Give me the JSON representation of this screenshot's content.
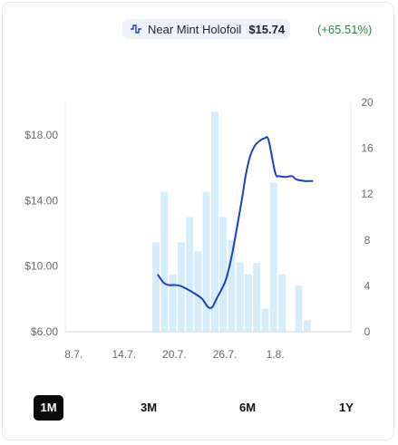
{
  "legend": {
    "icon": "line-series-icon",
    "series_name": "Near Mint Holofoil",
    "price": "$15.74",
    "change": "(+65.51%)",
    "line_color": "#1f3fbf",
    "bar_color": "#d5ecfb",
    "change_color": "#2e8b3e"
  },
  "ranges": [
    {
      "label": "1M",
      "active": true
    },
    {
      "label": "3M",
      "active": false
    },
    {
      "label": "6M",
      "active": false
    },
    {
      "label": "1Y",
      "active": false
    }
  ],
  "chart_data": {
    "type": "line",
    "x_ticks": [
      "8.7.",
      "14.7.",
      "20.7.",
      "26.7.",
      "1.8."
    ],
    "y_left_ticks": [
      "$6.00",
      "$10.00",
      "$14.00",
      "$18.00"
    ],
    "y_left_range": [
      6,
      20
    ],
    "y_right_ticks": [
      "0",
      "4",
      "8",
      "12",
      "16",
      "20"
    ],
    "y_right_range": [
      0,
      20
    ],
    "x_day_range": [
      7,
      41
    ],
    "x_tick_days": [
      8,
      14,
      20,
      26,
      32
    ],
    "series": [
      {
        "name": "Near Mint Holofoil",
        "kind": "line",
        "axis": "left",
        "points": [
          [
            18.0,
            9.5
          ],
          [
            18.7,
            9.0
          ],
          [
            19.3,
            8.85
          ],
          [
            20.0,
            8.85
          ],
          [
            20.7,
            8.8
          ],
          [
            21.5,
            8.6
          ],
          [
            22.5,
            8.3
          ],
          [
            23.3,
            8.0
          ],
          [
            24.0,
            7.5
          ],
          [
            24.5,
            7.5
          ],
          [
            25.0,
            8.0
          ],
          [
            26.0,
            9.0
          ],
          [
            26.5,
            9.9
          ],
          [
            27.0,
            11.1
          ],
          [
            28.0,
            14.0
          ],
          [
            28.5,
            15.6
          ],
          [
            29.0,
            16.7
          ],
          [
            29.5,
            17.3
          ],
          [
            30.0,
            17.6
          ],
          [
            30.7,
            17.8
          ],
          [
            31.2,
            17.7
          ],
          [
            32.0,
            15.7
          ],
          [
            32.5,
            15.5
          ],
          [
            33.3,
            15.45
          ],
          [
            34.0,
            15.5
          ],
          [
            34.5,
            15.3
          ],
          [
            35.5,
            15.2
          ],
          [
            36.0,
            15.2
          ],
          [
            36.5,
            15.2
          ]
        ]
      },
      {
        "name": "Volume",
        "kind": "bar",
        "axis": "right",
        "points": [
          [
            17.8,
            7.8
          ],
          [
            18.8,
            12.2
          ],
          [
            19.8,
            5.0
          ],
          [
            20.8,
            7.8
          ],
          [
            21.8,
            10.0
          ],
          [
            22.8,
            7.0
          ],
          [
            23.8,
            12.2
          ],
          [
            24.8,
            19.2
          ],
          [
            25.8,
            10.0
          ],
          [
            26.8,
            8.0
          ],
          [
            27.8,
            6.0
          ],
          [
            28.8,
            5.0
          ],
          [
            29.8,
            6.0
          ],
          [
            30.8,
            2.0
          ],
          [
            31.8,
            13.0
          ],
          [
            32.8,
            5.0
          ],
          [
            34.8,
            4.0
          ],
          [
            35.8,
            1.0
          ]
        ]
      }
    ]
  }
}
